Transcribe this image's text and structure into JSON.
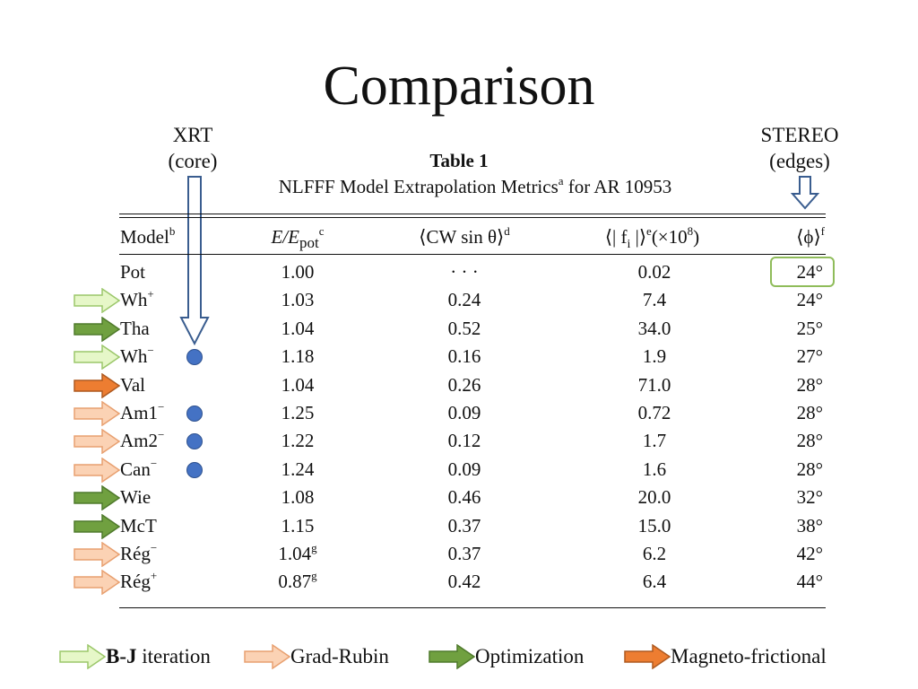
{
  "slide": {
    "title": "Comparison",
    "xrt_label": [
      "XRT",
      "(core)"
    ],
    "stereo_label": [
      "STEREO",
      "(edges)"
    ]
  },
  "table": {
    "caption": "Table 1",
    "subtitle": "NLFFF Model Extrapolation Metrics",
    "subtitle_sup": "a",
    "subtitle_tail": " for AR 10953",
    "headers": {
      "model": "Model",
      "model_sup": "b",
      "energy": "E/E",
      "energy_sub": "pot",
      "energy_sup": "c",
      "cw": "⟨CW sin θ⟩",
      "cw_sup": "d",
      "f": "⟨| f",
      "f_sub": "i",
      "f_tail": " |⟩",
      "f_sup": "e",
      "f_scale": "(×10",
      "f_scale_sup": "8",
      "f_scale_end": ")",
      "phi": "⟨ϕ⟩",
      "phi_sup": "f"
    },
    "rows": [
      {
        "model": "Pot",
        "msup": "",
        "energy": "1.00",
        "esup": "",
        "cw": "· · ·",
        "f": "0.02",
        "phi": "24°",
        "method": "",
        "xrt": false
      },
      {
        "model": "Wh",
        "msup": "+",
        "energy": "1.03",
        "esup": "",
        "cw": "0.24",
        "f": "7.4",
        "phi": "24°",
        "method": "bj",
        "xrt": false
      },
      {
        "model": "Tha",
        "msup": "",
        "energy": "1.04",
        "esup": "",
        "cw": "0.52",
        "f": "34.0",
        "phi": "25°",
        "method": "opt",
        "xrt": false
      },
      {
        "model": "Wh",
        "msup": "−",
        "energy": "1.18",
        "esup": "",
        "cw": "0.16",
        "f": "1.9",
        "phi": "27°",
        "method": "bj",
        "xrt": true
      },
      {
        "model": "Val",
        "msup": "",
        "energy": "1.04",
        "esup": "",
        "cw": "0.26",
        "f": "71.0",
        "phi": "28°",
        "method": "mf",
        "xrt": false
      },
      {
        "model": "Am1",
        "msup": "−",
        "energy": "1.25",
        "esup": "",
        "cw": "0.09",
        "f": "0.72",
        "phi": "28°",
        "method": "gr",
        "xrt": true
      },
      {
        "model": "Am2",
        "msup": "−",
        "energy": "1.22",
        "esup": "",
        "cw": "0.12",
        "f": "1.7",
        "phi": "28°",
        "method": "gr",
        "xrt": true
      },
      {
        "model": "Can",
        "msup": "−",
        "energy": "1.24",
        "esup": "",
        "cw": "0.09",
        "f": "1.6",
        "phi": "28°",
        "method": "gr",
        "xrt": true
      },
      {
        "model": "Wie",
        "msup": "",
        "energy": "1.08",
        "esup": "",
        "cw": "0.46",
        "f": "20.0",
        "phi": "32°",
        "method": "opt",
        "xrt": false
      },
      {
        "model": "McT",
        "msup": "",
        "energy": "1.15",
        "esup": "",
        "cw": "0.37",
        "f": "15.0",
        "phi": "38°",
        "method": "opt",
        "xrt": false
      },
      {
        "model": "Rég",
        "msup": "−",
        "energy": "1.04",
        "esup": "g",
        "cw": "0.37",
        "f": "6.2",
        "phi": "42°",
        "method": "gr",
        "xrt": false
      },
      {
        "model": "Rég",
        "msup": "+",
        "energy": "0.87",
        "esup": "g",
        "cw": "0.42",
        "f": "6.4",
        "phi": "44°",
        "method": "gr",
        "xrt": false
      }
    ]
  },
  "legend": {
    "bj_bold": "B-J",
    "bj_rest": " iteration",
    "gr": "Grad-Rubin",
    "opt": "Optimization",
    "mf": "Magneto-frictional"
  },
  "colors": {
    "bj": {
      "fill": "#e6f7c8",
      "stroke": "#9bc76a"
    },
    "gr": {
      "fill": "#fbd2b4",
      "stroke": "#e8a070"
    },
    "opt": {
      "fill": "#70a040",
      "stroke": "#4f7a2c"
    },
    "mf": {
      "fill": "#ed7d31",
      "stroke": "#ae5a21"
    },
    "blue_arrow": "#3a5d8f",
    "highlight_box": "#8fbc5a",
    "dot": "#4472c4"
  }
}
